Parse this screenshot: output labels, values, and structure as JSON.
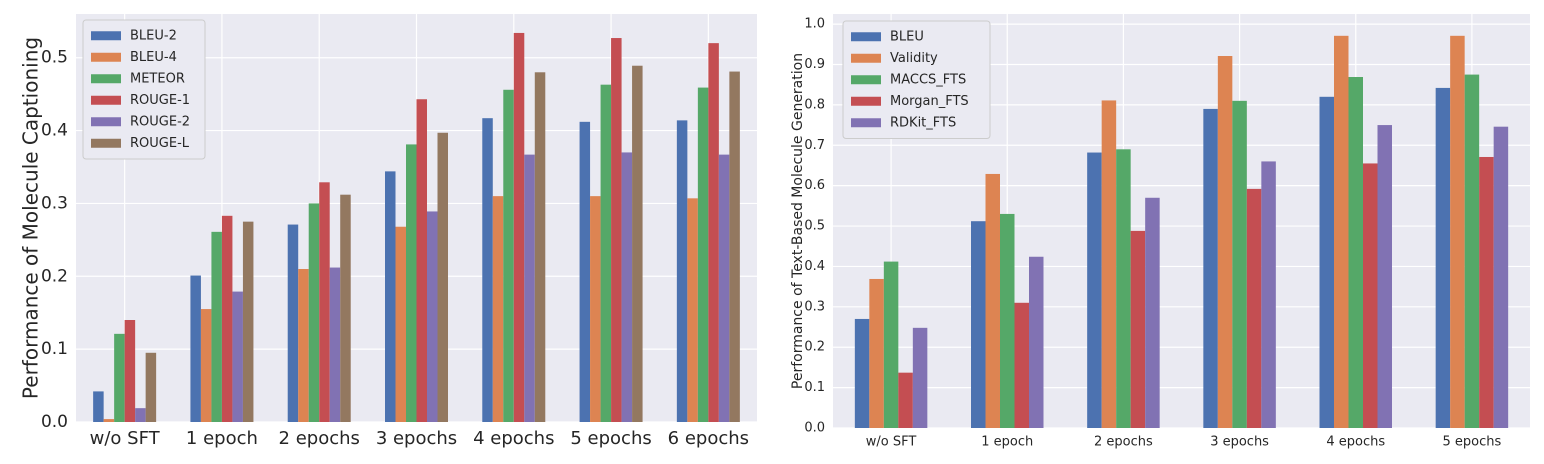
{
  "chart_data": [
    {
      "type": "bar",
      "ylabel": "Performance of Molecule Captioning",
      "xlabel": "",
      "ylim": [
        0,
        0.56
      ],
      "yticks": [
        "0.0",
        "0.1",
        "0.2",
        "0.3",
        "0.4",
        "0.5"
      ],
      "grid": true,
      "legend_position": "top-left",
      "categories": [
        "w/o SFT",
        "1 epoch",
        "2 epochs",
        "3 epochs",
        "4 epochs",
        "5 epochs",
        "6 epochs"
      ],
      "series": [
        {
          "name": "BLEU-2",
          "color": "#4c72b0",
          "values": [
            0.042,
            0.201,
            0.271,
            0.344,
            0.417,
            0.412,
            0.414
          ]
        },
        {
          "name": "BLEU-4",
          "color": "#dd8452",
          "values": [
            0.004,
            0.155,
            0.21,
            0.268,
            0.31,
            0.31,
            0.307
          ]
        },
        {
          "name": "METEOR",
          "color": "#55a868",
          "values": [
            0.121,
            0.261,
            0.3,
            0.381,
            0.456,
            0.463,
            0.459
          ]
        },
        {
          "name": "ROUGE-1",
          "color": "#c44e52",
          "values": [
            0.14,
            0.283,
            0.329,
            0.443,
            0.534,
            0.527,
            0.52
          ]
        },
        {
          "name": "ROUGE-2",
          "color": "#8172b3",
          "values": [
            0.019,
            0.179,
            0.212,
            0.289,
            0.367,
            0.37,
            0.367
          ]
        },
        {
          "name": "ROUGE-L",
          "color": "#937860",
          "values": [
            0.095,
            0.275,
            0.312,
            0.397,
            0.48,
            0.489,
            0.481
          ]
        }
      ]
    },
    {
      "type": "bar",
      "ylabel": "Performance of Text-Based Molecule Generation",
      "xlabel": "",
      "ylim": [
        0,
        1.025
      ],
      "yticks": [
        "0.0",
        "0.1",
        "0.2",
        "0.3",
        "0.4",
        "0.5",
        "0.6",
        "0.7",
        "0.8",
        "0.9",
        "1.0"
      ],
      "grid": true,
      "legend_position": "top-left",
      "categories": [
        "w/o SFT",
        "1 epoch",
        "2 epochs",
        "3 epochs",
        "4 epochs",
        "5 epochs"
      ],
      "series": [
        {
          "name": "BLEU",
          "color": "#4c72b0",
          "values": [
            0.27,
            0.512,
            0.682,
            0.79,
            0.82,
            0.842
          ]
        },
        {
          "name": "Validity",
          "color": "#dd8452",
          "values": [
            0.369,
            0.629,
            0.811,
            0.921,
            0.971,
            0.971
          ]
        },
        {
          "name": "MACCS_FTS",
          "color": "#55a868",
          "values": [
            0.412,
            0.53,
            0.69,
            0.81,
            0.869,
            0.875
          ]
        },
        {
          "name": "Morgan_FTS",
          "color": "#c44e52",
          "values": [
            0.137,
            0.31,
            0.488,
            0.592,
            0.655,
            0.671
          ]
        },
        {
          "name": "RDKit_FTS",
          "color": "#8172b3",
          "values": [
            0.248,
            0.424,
            0.57,
            0.66,
            0.75,
            0.746
          ]
        }
      ]
    }
  ]
}
